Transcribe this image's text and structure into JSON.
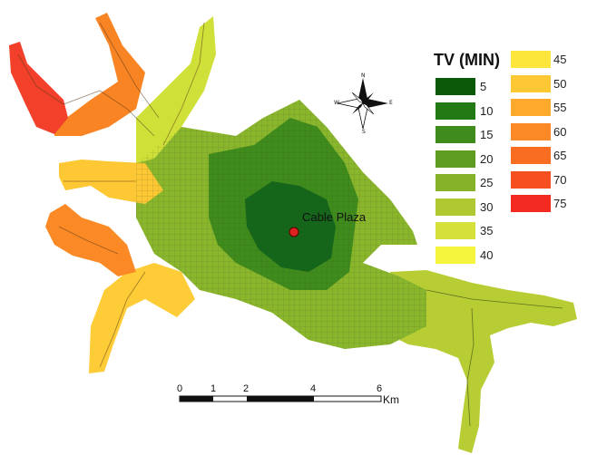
{
  "legend": {
    "title": "TV (MIN)",
    "items": [
      {
        "label": "5",
        "color": "#0a5a0a"
      },
      {
        "label": "10",
        "color": "#237a15"
      },
      {
        "label": "15",
        "color": "#3f8c1c"
      },
      {
        "label": "20",
        "color": "#5e9c22"
      },
      {
        "label": "25",
        "color": "#86b22a"
      },
      {
        "label": "30",
        "color": "#afc832"
      },
      {
        "label": "35",
        "color": "#d6e03a"
      },
      {
        "label": "40",
        "color": "#f6f53e"
      },
      {
        "label": "45",
        "color": "#fde63c"
      },
      {
        "label": "50",
        "color": "#fdc834"
      },
      {
        "label": "55",
        "color": "#fda92c"
      },
      {
        "label": "60",
        "color": "#fb8a26"
      },
      {
        "label": "65",
        "color": "#f96d22"
      },
      {
        "label": "70",
        "color": "#f64f20"
      },
      {
        "label": "75",
        "color": "#f22a22"
      }
    ]
  },
  "poi": {
    "label": "Cable Plaza",
    "color": "#e02020"
  },
  "scale": {
    "ticks": [
      "0",
      "1",
      "2",
      "4",
      "6"
    ],
    "unit": "Km"
  },
  "compass": {
    "north": "N",
    "south": "S",
    "east": "E",
    "west": "W"
  }
}
